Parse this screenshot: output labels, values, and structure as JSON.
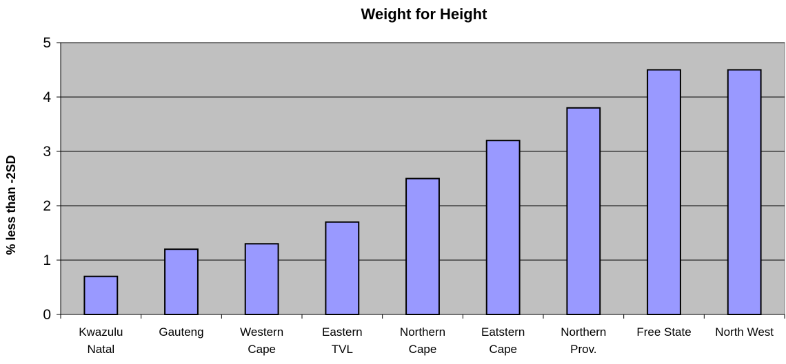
{
  "chart_data": {
    "type": "bar",
    "title": "Weight for Height",
    "xlabel": "",
    "ylabel": "% less than -2SD",
    "ylim": [
      0,
      5
    ],
    "yticks": [
      "0",
      "1",
      "2",
      "3",
      "4",
      "5"
    ],
    "categories": [
      [
        "Kwazulu",
        "Natal"
      ],
      [
        "Gauteng"
      ],
      [
        "Western",
        "Cape"
      ],
      [
        "Eastern",
        "TVL"
      ],
      [
        "Northern",
        "Cape"
      ],
      [
        "Eatstern",
        "Cape"
      ],
      [
        "Northern",
        "Prov."
      ],
      [
        "Free State"
      ],
      [
        "North West"
      ]
    ],
    "values": [
      0.7,
      1.2,
      1.3,
      1.7,
      2.5,
      3.2,
      3.8,
      4.5,
      4.5
    ],
    "grid": true,
    "legend": "none",
    "colors": {
      "bar_fill": "#9999ff",
      "bar_stroke": "#000000",
      "plot_background": "#c0c0c0",
      "gridline": "#000000"
    }
  }
}
